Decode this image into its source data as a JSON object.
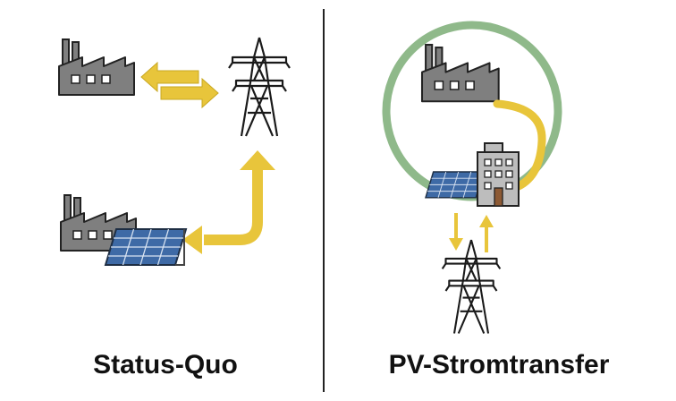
{
  "panels": {
    "left": {
      "caption": "Status-Quo"
    },
    "right": {
      "caption": "PV-Stromtransfer"
    }
  },
  "colors": {
    "factory_fill": "#7f7f7f",
    "outline": "#222222",
    "arrow_yellow": "#e8c53b",
    "loop_green": "#8fb98a",
    "solar_cell": "#3e6aa6",
    "building_fill": "#bdbdbd",
    "divider": "#222222"
  },
  "icons": [
    "factory-icon",
    "power-pylon-icon",
    "solar-panel-icon",
    "office-building-icon",
    "double-arrow-icon",
    "curved-arrow-icon",
    "up-arrow-icon",
    "down-arrow-icon"
  ]
}
